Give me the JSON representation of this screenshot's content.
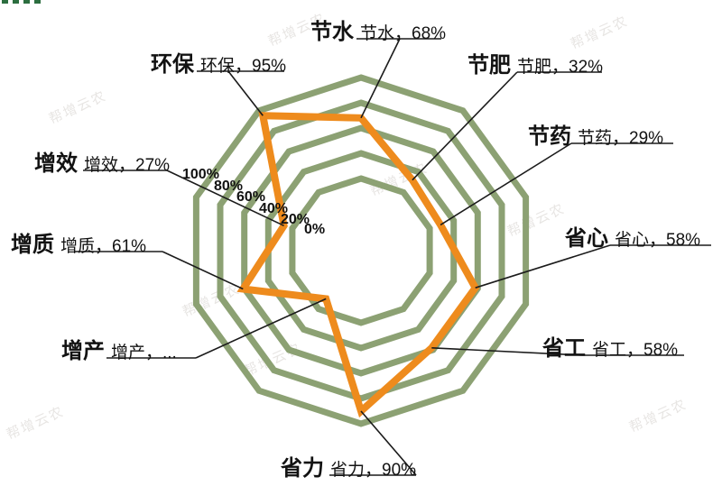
{
  "watermark": {
    "text": "帮增云农"
  },
  "decoration": {
    "corner_mark_color": "#2c6e3f"
  },
  "chart_data": {
    "type": "radar",
    "title": "",
    "categories": [
      "节水",
      "节肥",
      "节药",
      "省心",
      "省工",
      "省力",
      "增产",
      "增质",
      "增效",
      "环保"
    ],
    "series": [
      {
        "name": "",
        "values": [
          68,
          32,
          29,
          58,
          58,
          90,
          null,
          61,
          27,
          95
        ]
      }
    ],
    "labels": [
      {
        "name": "节水",
        "value": 68,
        "display": "节水，68%"
      },
      {
        "name": "节肥",
        "value": 32,
        "display": "节肥，32%"
      },
      {
        "name": "节药",
        "value": 29,
        "display": "节药，29%"
      },
      {
        "name": "省心",
        "value": 58,
        "display": "省心，58%"
      },
      {
        "name": "省工",
        "value": 58,
        "display": "省工，58%"
      },
      {
        "name": "省力",
        "value": 90,
        "display": "省力，90%"
      },
      {
        "name": "增产",
        "value": null,
        "display": "增产，..."
      },
      {
        "name": "增质",
        "value": 61,
        "display": "增质，61%"
      },
      {
        "name": "增效",
        "value": 27,
        "display": "增效，27%"
      },
      {
        "name": "环保",
        "value": 95,
        "display": "环保，95%"
      }
    ],
    "ticks": [
      "100%",
      "80%",
      "60%",
      "40%",
      "20%",
      "0%"
    ],
    "axis_range": [
      0,
      100
    ],
    "grid_rings_percent": [
      20,
      40,
      60,
      80,
      100
    ],
    "grid_shape": "decagon",
    "grid_color": "#8ca173",
    "series_color": "#ee8b1d",
    "line_color": "#1b1b1b",
    "legend_position": "none"
  }
}
